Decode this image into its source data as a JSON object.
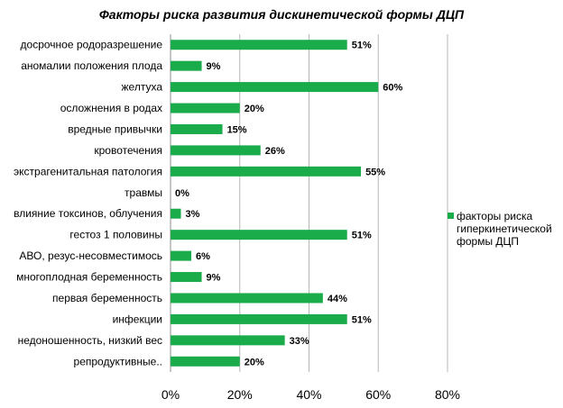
{
  "chart_data": {
    "type": "bar",
    "orientation": "horizontal",
    "title": "Факторы риска развития дискинетической формы ДЦП",
    "categories": [
      "досрочное родоразрешение",
      "аномалии положения плода",
      "желтуха",
      "осложнения в родах",
      "вредные привычки",
      "кровотечения",
      "экстрагенитальная патология",
      "травмы",
      "влияние токсинов, облучения",
      "гестоз 1 половины",
      "АВО, резус-несовместимось",
      "многоплодная беременность",
      "первая беременность",
      "инфекции",
      "недоношенность, низкий вес",
      "репродуктивные.."
    ],
    "series": [
      {
        "name": "факторы риска гиперкинетической формы ДЦП",
        "values": [
          51,
          9,
          60,
          20,
          15,
          26,
          55,
          0,
          3,
          51,
          6,
          9,
          44,
          51,
          33,
          20
        ],
        "labels": [
          "51%",
          "9%",
          "60%",
          "20%",
          "15%",
          "26%",
          "55%",
          "0%",
          "3%",
          "51%",
          "6%",
          "9%",
          "44%",
          "51%",
          "33%",
          "20%"
        ]
      }
    ],
    "xlim": [
      0,
      80
    ],
    "xticks": [
      "0%",
      "20%",
      "40%",
      "60%",
      "80%"
    ],
    "grid": true,
    "legend": "right",
    "colors": {
      "bar": "#1aab4b",
      "grid": "#b7b7b7",
      "axis": "#8c8c8c"
    }
  }
}
